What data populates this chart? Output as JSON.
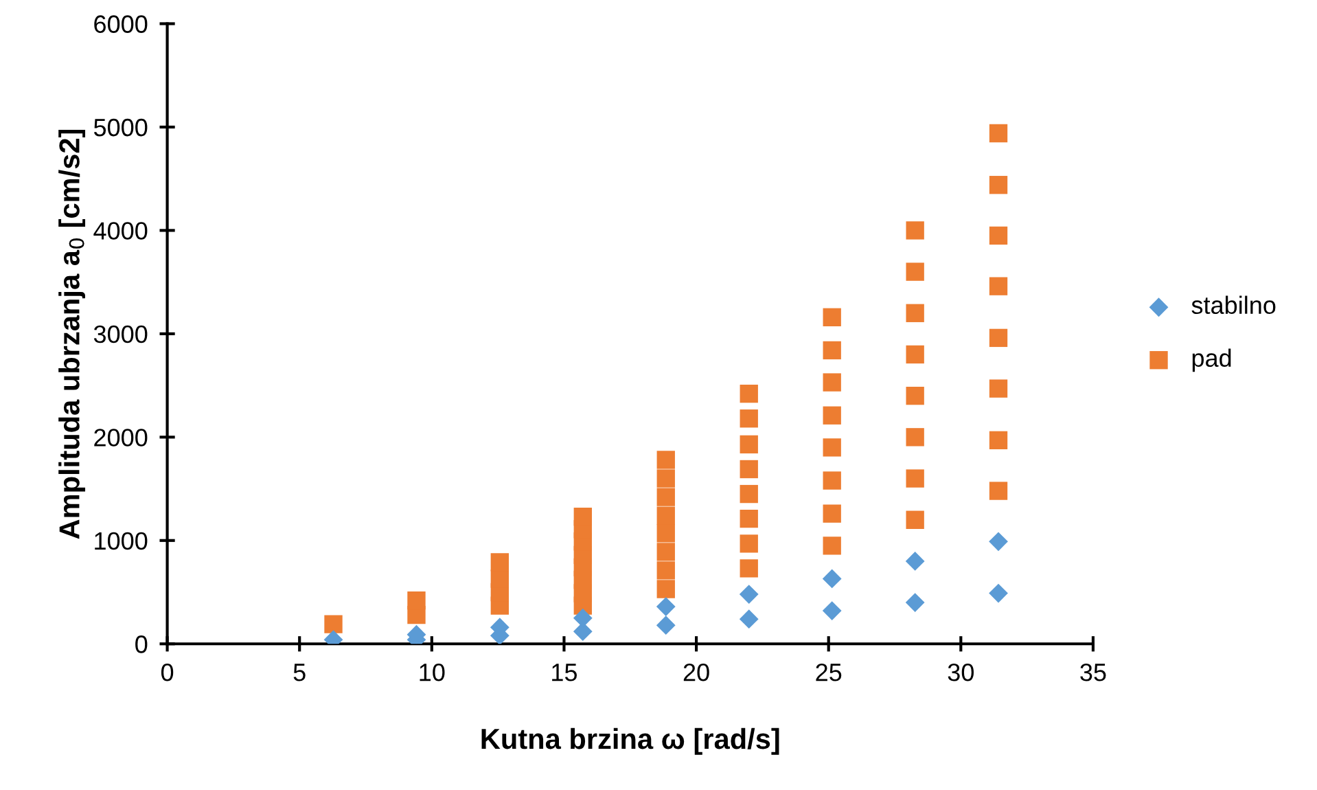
{
  "chart_data": {
    "type": "scatter",
    "xlabel": "Kutna brzina ω [rad/s]",
    "ylabel": "Amplituda ubrzanja a$_{0}$ [cm/s2]",
    "xlim": [
      0,
      35
    ],
    "xticks": [
      0,
      5,
      10,
      15,
      20,
      25,
      30,
      35
    ],
    "ylim": [
      0,
      6000
    ],
    "yticks": [
      0,
      1000,
      2000,
      3000,
      4000,
      5000,
      6000
    ],
    "grid": false,
    "legend": "right",
    "series": [
      {
        "name": "stabilno",
        "color": "#5b9bd5",
        "marker": "diamond",
        "x": [
          6.28,
          9.42,
          9.42,
          12.57,
          12.57,
          15.71,
          15.71,
          18.85,
          18.85,
          21.99,
          21.99,
          25.13,
          25.13,
          28.27,
          28.27,
          31.42,
          31.42
        ],
        "values": [
          40,
          40,
          90,
          80,
          160,
          120,
          250,
          180,
          360,
          240,
          480,
          320,
          630,
          400,
          800,
          490,
          990
        ]
      },
      {
        "name": "pad",
        "color": "#ed7d31",
        "marker": "square",
        "x": [
          6.28,
          9.42,
          9.42,
          12.57,
          12.57,
          12.57,
          12.57,
          15.71,
          15.71,
          15.71,
          15.71,
          15.71,
          15.71,
          15.71,
          15.71,
          18.85,
          18.85,
          18.85,
          18.85,
          18.85,
          18.85,
          18.85,
          18.85,
          21.99,
          21.99,
          21.99,
          21.99,
          21.99,
          21.99,
          21.99,
          21.99,
          25.13,
          25.13,
          25.13,
          25.13,
          25.13,
          25.13,
          25.13,
          25.13,
          28.27,
          28.27,
          28.27,
          28.27,
          28.27,
          28.27,
          28.27,
          28.27,
          31.42,
          31.42,
          31.42,
          31.42,
          31.42,
          31.42,
          31.42,
          31.42
        ],
        "values": [
          190,
          280,
          420,
          370,
          500,
          630,
          790,
          370,
          490,
          620,
          740,
          860,
          990,
          1110,
          1230,
          530,
          710,
          890,
          1070,
          1240,
          1420,
          1600,
          1780,
          730,
          970,
          1210,
          1450,
          1690,
          1930,
          2180,
          2420,
          950,
          1260,
          1580,
          1900,
          2210,
          2530,
          2840,
          3160,
          1200,
          1600,
          2000,
          2400,
          2800,
          3200,
          3600,
          4000,
          1480,
          1970,
          2470,
          2960,
          3460,
          3950,
          4440,
          4940
        ]
      }
    ]
  }
}
